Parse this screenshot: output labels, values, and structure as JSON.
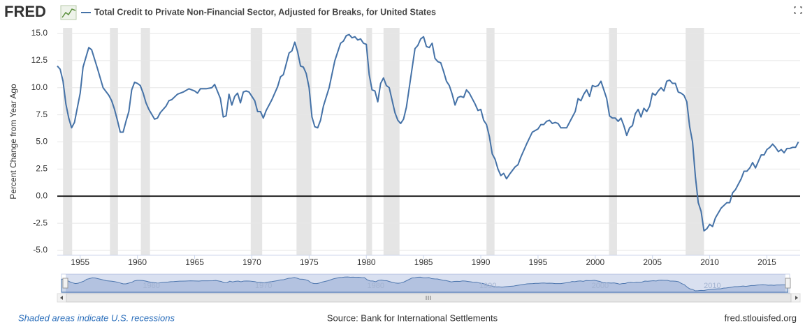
{
  "chart_data": {
    "type": "line",
    "brand": "FRED",
    "ylabel": "Percent Change from Year Ago",
    "note": "Shaded areas indicate U.S. recessions",
    "source": "Source: Bank for International Settlements",
    "site": "fred.stlouisfed.org",
    "xlim": [
      1953,
      2017.9
    ],
    "ylim": [
      -5,
      15
    ],
    "xticks": [
      1955,
      1960,
      1965,
      1970,
      1975,
      1980,
      1985,
      1990,
      1995,
      2000,
      2005,
      2010,
      2015
    ],
    "yticks": [
      {
        "value": 15,
        "label": "15.0"
      },
      12.5,
      {
        "value": 10,
        "label": "10.0"
      },
      7.5,
      {
        "value": 5,
        "label": "5.0"
      },
      2.5,
      {
        "value": 0,
        "label": "0.0"
      },
      -2.5,
      {
        "value": -5,
        "label": "-5.0"
      }
    ],
    "grid": true,
    "zero_line": true,
    "navigator_ticks": [
      1960,
      1970,
      1980,
      1990,
      2000,
      2010
    ],
    "recessions": [
      [
        1953.5,
        1954.3
      ],
      [
        1957.6,
        1958.3
      ],
      [
        1960.3,
        1961.1
      ],
      [
        1969.9,
        1970.9
      ],
      [
        1973.9,
        1975.2
      ],
      [
        1980.0,
        1980.5
      ],
      [
        1981.5,
        1982.9
      ],
      [
        1990.5,
        1991.2
      ],
      [
        2001.2,
        2001.9
      ],
      [
        2007.9,
        2009.5
      ]
    ],
    "series": [
      {
        "name": "Total Credit to Private Non-Financial Sector, Adjusted for Breaks, for United States",
        "color": "#4572a7",
        "x": [
          1953.0,
          1953.25,
          1953.5,
          1953.75,
          1954.0,
          1954.25,
          1954.5,
          1955.0,
          1955.25,
          1955.5,
          1955.75,
          1956.0,
          1956.5,
          1957.0,
          1957.5,
          1957.75,
          1958.0,
          1958.25,
          1958.5,
          1958.75,
          1959.0,
          1959.25,
          1959.5,
          1959.75,
          1960.0,
          1960.25,
          1960.5,
          1960.75,
          1961.0,
          1961.5,
          1961.75,
          1962.0,
          1962.5,
          1962.75,
          1963.0,
          1963.5,
          1964.0,
          1964.5,
          1965.0,
          1965.25,
          1965.5,
          1966.0,
          1966.5,
          1966.75,
          1967.25,
          1967.5,
          1967.75,
          1968.0,
          1968.25,
          1968.5,
          1968.75,
          1969.0,
          1969.25,
          1969.5,
          1969.75,
          1970.25,
          1970.5,
          1970.75,
          1971.0,
          1971.25,
          1971.75,
          1972.25,
          1972.5,
          1972.75,
          1973.25,
          1973.5,
          1973.75,
          1974.0,
          1974.25,
          1974.5,
          1974.75,
          1975.0,
          1975.25,
          1975.5,
          1975.75,
          1976.0,
          1976.25,
          1976.75,
          1977.25,
          1977.75,
          1978.0,
          1978.25,
          1978.5,
          1978.75,
          1979.0,
          1979.25,
          1979.5,
          1979.75,
          1980.0,
          1980.25,
          1980.5,
          1980.75,
          1981.0,
          1981.25,
          1981.5,
          1981.75,
          1982.0,
          1982.5,
          1982.75,
          1983.0,
          1983.25,
          1983.5,
          1983.75,
          1984.25,
          1984.5,
          1984.75,
          1985.0,
          1985.25,
          1985.5,
          1985.75,
          1986.0,
          1986.25,
          1986.5,
          1986.75,
          1987.0,
          1987.25,
          1987.5,
          1987.75,
          1988.0,
          1988.25,
          1988.5,
          1988.75,
          1989.0,
          1989.25,
          1989.5,
          1989.75,
          1990.0,
          1990.25,
          1990.5,
          1990.75,
          1991.0,
          1991.25,
          1991.5,
          1991.75,
          1992.0,
          1992.25,
          1992.5,
          1993.0,
          1993.25,
          1993.5,
          1994.0,
          1994.5,
          1995.0,
          1995.25,
          1995.5,
          1995.75,
          1996.0,
          1996.25,
          1996.5,
          1996.75,
          1997.0,
          1997.25,
          1997.5,
          1997.75,
          1998.25,
          1998.5,
          1998.75,
          1999.0,
          1999.25,
          1999.5,
          1999.75,
          2000.0,
          2000.25,
          2000.5,
          2000.75,
          2001.0,
          2001.25,
          2001.5,
          2001.75,
          2002.0,
          2002.25,
          2002.5,
          2002.75,
          2003.0,
          2003.25,
          2003.5,
          2003.75,
          2004.0,
          2004.25,
          2004.5,
          2004.75,
          2005.0,
          2005.25,
          2005.5,
          2005.75,
          2006.0,
          2006.25,
          2006.5,
          2006.75,
          2007.0,
          2007.25,
          2007.5,
          2007.75,
          2008.0,
          2008.25,
          2008.5,
          2008.75,
          2009.0,
          2009.25,
          2009.5,
          2009.75,
          2010.0,
          2010.25,
          2010.5,
          2011.0,
          2011.5,
          2011.75,
          2012.0,
          2012.25,
          2012.75,
          2013.0,
          2013.25,
          2013.5,
          2013.75,
          2014.0,
          2014.25,
          2014.5,
          2014.75,
          2015.0,
          2015.25,
          2015.5,
          2015.75,
          2016.0,
          2016.25,
          2016.5,
          2016.75,
          2017.0,
          2017.25,
          2017.5,
          2017.75
        ],
        "values": [
          12.0,
          11.7,
          10.6,
          8.5,
          7.2,
          6.3,
          6.8,
          9.5,
          11.9,
          12.8,
          13.7,
          13.5,
          11.8,
          10.0,
          9.3,
          8.8,
          8.0,
          7.0,
          5.9,
          5.9,
          6.9,
          7.8,
          9.8,
          10.5,
          10.4,
          10.2,
          9.5,
          8.6,
          8.0,
          7.1,
          7.2,
          7.7,
          8.3,
          8.8,
          8.9,
          9.4,
          9.6,
          9.9,
          9.7,
          9.5,
          9.9,
          9.9,
          10.0,
          10.3,
          9.0,
          7.3,
          7.4,
          9.4,
          8.4,
          9.2,
          9.5,
          8.6,
          9.6,
          9.7,
          9.6,
          8.8,
          7.8,
          7.8,
          7.2,
          7.9,
          8.9,
          10.1,
          11.0,
          11.2,
          13.2,
          13.4,
          14.2,
          13.3,
          12.0,
          11.9,
          11.3,
          10.0,
          7.3,
          6.4,
          6.3,
          7.0,
          8.3,
          10.0,
          12.5,
          14.1,
          14.3,
          14.8,
          14.9,
          14.6,
          14.7,
          14.4,
          14.5,
          14.1,
          14.0,
          11.2,
          9.8,
          9.7,
          8.7,
          10.4,
          10.9,
          10.2,
          10.0,
          7.7,
          7.0,
          6.7,
          7.1,
          8.2,
          10.0,
          13.6,
          13.9,
          14.5,
          14.7,
          13.8,
          13.7,
          14.1,
          12.7,
          12.4,
          12.3,
          11.5,
          10.6,
          10.2,
          9.4,
          8.4,
          9.1,
          9.2,
          9.1,
          9.8,
          9.5,
          9.0,
          8.5,
          7.9,
          8.0,
          7.0,
          6.6,
          5.5,
          3.9,
          3.4,
          2.5,
          1.9,
          2.1,
          1.6,
          2.0,
          2.7,
          2.9,
          3.6,
          4.8,
          5.9,
          6.2,
          6.6,
          6.6,
          6.9,
          7.0,
          6.7,
          6.8,
          6.7,
          6.3,
          6.3,
          6.3,
          6.8,
          7.8,
          9.0,
          8.8,
          9.4,
          9.8,
          9.2,
          10.2,
          10.1,
          10.2,
          10.6,
          9.8,
          9.0,
          7.4,
          7.2,
          7.2,
          6.9,
          7.2,
          6.5,
          5.6,
          6.3,
          6.5,
          7.6,
          8.0,
          7.3,
          8.1,
          7.8,
          8.3,
          9.5,
          9.3,
          9.7,
          10.0,
          9.7,
          10.6,
          10.7,
          10.4,
          10.4,
          9.6,
          9.5,
          9.3,
          8.7,
          6.4,
          5.0,
          1.8,
          -0.6,
          -1.4,
          -3.2,
          -3.0,
          -2.6,
          -2.8,
          -2.0,
          -1.1,
          -0.6,
          -0.6,
          0.3,
          0.6,
          1.6,
          2.3,
          2.3,
          2.6,
          3.1,
          2.6,
          3.2,
          3.8,
          3.8,
          4.3,
          4.5,
          4.8,
          4.5,
          4.1,
          4.3,
          4.0,
          4.4,
          4.4,
          4.5,
          4.5,
          5.0
        ]
      }
    ]
  }
}
